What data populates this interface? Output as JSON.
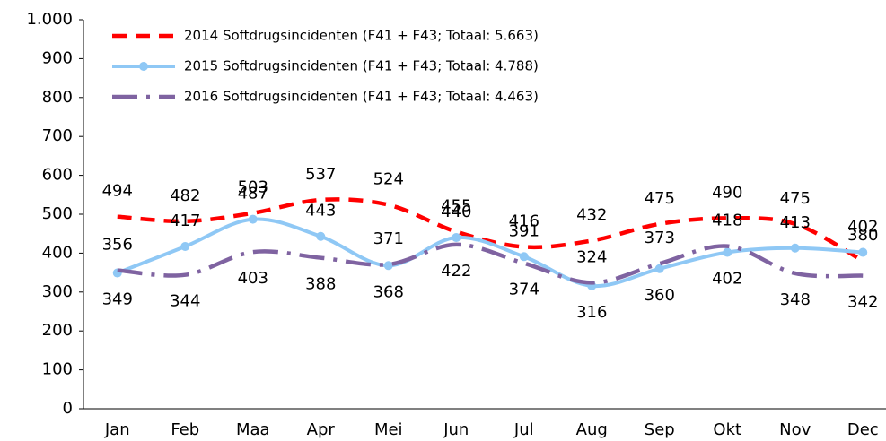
{
  "chart_data": {
    "type": "line",
    "categories": [
      "Jan",
      "Feb",
      "Maa",
      "Apr",
      "Mei",
      "Jun",
      "Jul",
      "Aug",
      "Sep",
      "Okt",
      "Nov",
      "Dec"
    ],
    "series": [
      {
        "name": "2014  Softdrugsincidenten (F41 + F43; Totaal: 5.663)",
        "color": "#ff0000",
        "line_style": "dashed",
        "values": [
          494,
          482,
          503,
          537,
          524,
          455,
          416,
          432,
          475,
          490,
          475,
          380
        ]
      },
      {
        "name": "2015  Softdrugsincidenten (F41 + F43; Totaal: 4.788)",
        "color": "#8fc8f5",
        "line_style": "solid-markers",
        "values": [
          349,
          417,
          487,
          443,
          368,
          440,
          391,
          316,
          360,
          402,
          413,
          402
        ]
      },
      {
        "name": "2016  Softdrugsincidenten (F41 + F43; Totaal: 4.463)",
        "color": "#7f63a1",
        "line_style": "dashdot",
        "values": [
          356,
          344,
          403,
          388,
          371,
          422,
          374,
          324,
          373,
          418,
          348,
          342
        ]
      }
    ],
    "ylim": [
      0,
      1000
    ],
    "yticks": [
      0,
      100,
      200,
      300,
      400,
      500,
      600,
      700,
      800,
      900,
      {
        "value": 1000,
        "label": "1.000"
      }
    ],
    "grid": false,
    "legend": "top-left"
  }
}
